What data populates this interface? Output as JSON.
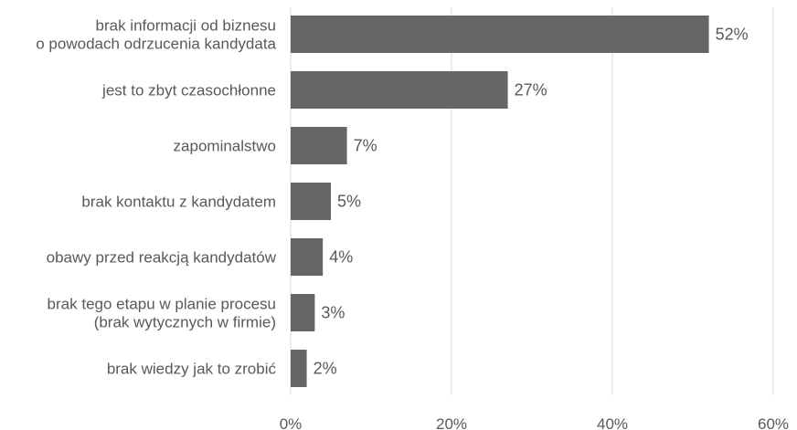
{
  "chart_data": {
    "type": "bar",
    "orientation": "horizontal",
    "categories": [
      [
        "brak informacji od biznesu",
        "o powodach odrzucenia kandydata"
      ],
      [
        "jest to zbyt czasochłonne"
      ],
      [
        "zapominalstwo"
      ],
      [
        "brak kontaktu z kandydatem"
      ],
      [
        "obawy przed reakcją kandydatów"
      ],
      [
        "brak tego etapu w planie procesu",
        "(brak wytycznych w firmie)"
      ],
      [
        "brak wiedzy jak to zrobić"
      ]
    ],
    "values": [
      52,
      27,
      7,
      5,
      4,
      3,
      2
    ],
    "data_labels": [
      "52%",
      "27%",
      "7%",
      "5%",
      "4%",
      "3%",
      "2%"
    ],
    "xlim": [
      0,
      60
    ],
    "xticks": [
      0,
      20,
      40,
      60
    ],
    "xtick_labels": [
      "0%",
      "20%",
      "40%",
      "60%"
    ],
    "grid": "vertical",
    "legend": "none",
    "bar_color": "#666666",
    "grid_color": "#d9d9d9",
    "text_color": "#595959"
  }
}
